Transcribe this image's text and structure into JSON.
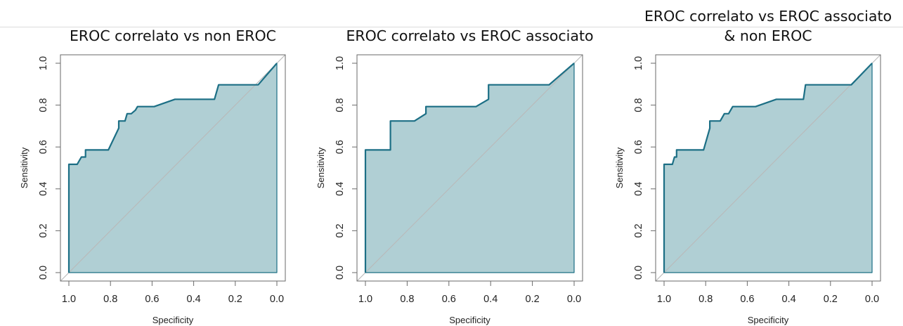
{
  "colors": {
    "fill": "#b0cfd4",
    "curve": "#1c6f85",
    "diagonal": "#b9b9b9",
    "frame": "#6a6a6a"
  },
  "chart_data": [
    {
      "type": "line",
      "title_lines": [
        "EROC correlato vs non EROC"
      ],
      "xlabel": "Specificity",
      "ylabel": "Sensitivity",
      "xlim": [
        1.0,
        0.0
      ],
      "ylim": [
        0.0,
        1.0
      ],
      "x_reversed": true,
      "diagonal_reference": true,
      "area_filled": true,
      "xticks": [
        "1.0",
        "0.8",
        "0.6",
        "0.4",
        "0.2",
        "0.0"
      ],
      "yticks": [
        "0.0",
        "0.2",
        "0.4",
        "0.6",
        "0.8",
        "1.0"
      ],
      "series": [
        {
          "x": [
            1.0,
            1.0,
            0.96,
            0.94,
            0.92,
            0.92,
            0.81,
            0.76,
            0.76,
            0.73,
            0.72,
            0.7,
            0.68,
            0.67,
            0.67,
            0.59,
            0.49,
            0.3,
            0.28,
            0.09,
            0.0,
            0.0
          ],
          "y": [
            0.0,
            0.517,
            0.517,
            0.552,
            0.552,
            0.586,
            0.586,
            0.69,
            0.724,
            0.724,
            0.759,
            0.759,
            0.776,
            0.793,
            0.793,
            0.793,
            0.828,
            0.828,
            0.897,
            0.897,
            1.0,
            0.0
          ]
        }
      ]
    },
    {
      "type": "line",
      "title_lines": [
        "EROC correlato vs EROC associato"
      ],
      "xlabel": "Specificity",
      "ylabel": "Sensitivity",
      "xlim": [
        1.0,
        0.0
      ],
      "ylim": [
        0.0,
        1.0
      ],
      "x_reversed": true,
      "diagonal_reference": true,
      "area_filled": true,
      "xticks": [
        "1.0",
        "0.8",
        "0.6",
        "0.4",
        "0.2",
        "0.0"
      ],
      "yticks": [
        "0.0",
        "0.2",
        "0.4",
        "0.6",
        "0.8",
        "1.0"
      ],
      "series": [
        {
          "x": [
            1.0,
            1.0,
            0.88,
            0.88,
            0.765,
            0.71,
            0.71,
            0.47,
            0.41,
            0.41,
            0.12,
            0.0,
            0.0
          ],
          "y": [
            0.0,
            0.586,
            0.586,
            0.724,
            0.724,
            0.759,
            0.793,
            0.793,
            0.828,
            0.897,
            0.897,
            1.0,
            0.0
          ]
        }
      ]
    },
    {
      "type": "line",
      "title_lines": [
        "EROC correlato vs EROC associato",
        "& non EROC"
      ],
      "xlabel": "Specificity",
      "ylabel": "Sensitivity",
      "xlim": [
        1.0,
        0.0
      ],
      "ylim": [
        0.0,
        1.0
      ],
      "x_reversed": true,
      "diagonal_reference": true,
      "area_filled": true,
      "xticks": [
        "1.0",
        "0.8",
        "0.6",
        "0.4",
        "0.2",
        "0.0"
      ],
      "yticks": [
        "0.0",
        "0.2",
        "0.4",
        "0.6",
        "0.8",
        "1.0"
      ],
      "series": [
        {
          "x": [
            1.0,
            1.0,
            0.96,
            0.95,
            0.94,
            0.94,
            0.81,
            0.78,
            0.78,
            0.73,
            0.71,
            0.69,
            0.67,
            0.67,
            0.56,
            0.46,
            0.33,
            0.32,
            0.1,
            0.0,
            0.0
          ],
          "y": [
            0.0,
            0.517,
            0.517,
            0.552,
            0.552,
            0.586,
            0.586,
            0.69,
            0.724,
            0.724,
            0.759,
            0.759,
            0.793,
            0.793,
            0.793,
            0.828,
            0.828,
            0.897,
            0.897,
            1.0,
            0.0
          ]
        }
      ]
    }
  ]
}
